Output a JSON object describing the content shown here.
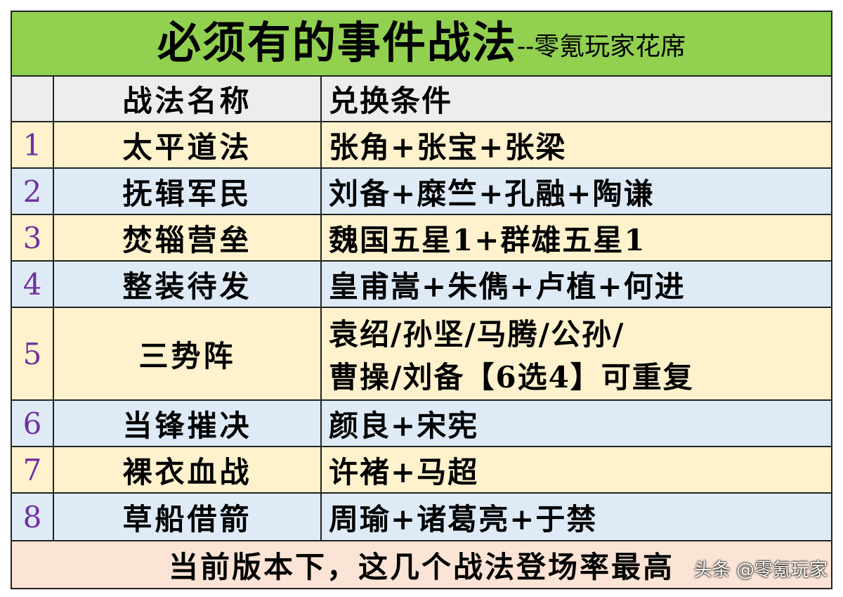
{
  "title": {
    "main": "必须有的事件战法",
    "sub": "--零氪玩家花席"
  },
  "header": {
    "num": "",
    "name": "战法名称",
    "condition": "兑换条件"
  },
  "rows": [
    {
      "num": "1",
      "name": "太平道法",
      "condition": [
        "张角+张宝+张梁"
      ],
      "color": "#fff2cc"
    },
    {
      "num": "2",
      "name": "抚辑军民",
      "condition": [
        "刘备+糜竺+孔融+陶谦"
      ],
      "color": "#deebf7"
    },
    {
      "num": "3",
      "name": "焚辎营垒",
      "condition": [
        "魏国五星1+群雄五星1"
      ],
      "color": "#fff2cc"
    },
    {
      "num": "4",
      "name": "整装待发",
      "condition": [
        "皇甫嵩+朱儁+卢植+何进"
      ],
      "color": "#deebf7"
    },
    {
      "num": "5",
      "name": "三势阵",
      "condition": [
        "袁绍/孙坚/马腾/公孙/",
        "曹操/刘备【6选4】可重复"
      ],
      "color": "#fff2cc"
    },
    {
      "num": "6",
      "name": "当锋摧决",
      "condition": [
        "颜良+宋宪"
      ],
      "color": "#deebf7"
    },
    {
      "num": "7",
      "name": "裸衣血战",
      "condition": [
        "许褚+马超"
      ],
      "color": "#fff2cc"
    },
    {
      "num": "8",
      "name": "草船借箭",
      "condition": [
        "周瑜+诸葛亮+于禁"
      ],
      "color": "#deebf7"
    }
  ],
  "footer": "当前版本下，这几个战法登场率最高",
  "watermark": "头条 @零氪玩家"
}
